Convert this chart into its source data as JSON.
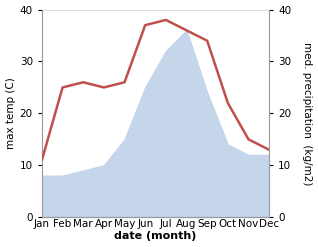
{
  "months": [
    "Jan",
    "Feb",
    "Mar",
    "Apr",
    "May",
    "Jun",
    "Jul",
    "Aug",
    "Sep",
    "Oct",
    "Nov",
    "Dec"
  ],
  "temperature": [
    11,
    25,
    26,
    25,
    26,
    37,
    38,
    36,
    34,
    22,
    15,
    13
  ],
  "precipitation": [
    8,
    8,
    9,
    10,
    15,
    25,
    32,
    36,
    24,
    14,
    12,
    12
  ],
  "temp_color": "#c0504d",
  "precip_color": "#c5d5ea",
  "ylim": [
    0,
    40
  ],
  "yticks": [
    0,
    10,
    20,
    30,
    40
  ],
  "ylabel_left": "max temp (C)",
  "ylabel_right": "med. precipitation  (kg/m2)",
  "xlabel": "date (month)",
  "background_color": "#ffffff",
  "temp_linewidth": 1.8,
  "xlabel_fontsize": 8,
  "ylabel_fontsize": 7.5,
  "tick_fontsize": 7.5
}
